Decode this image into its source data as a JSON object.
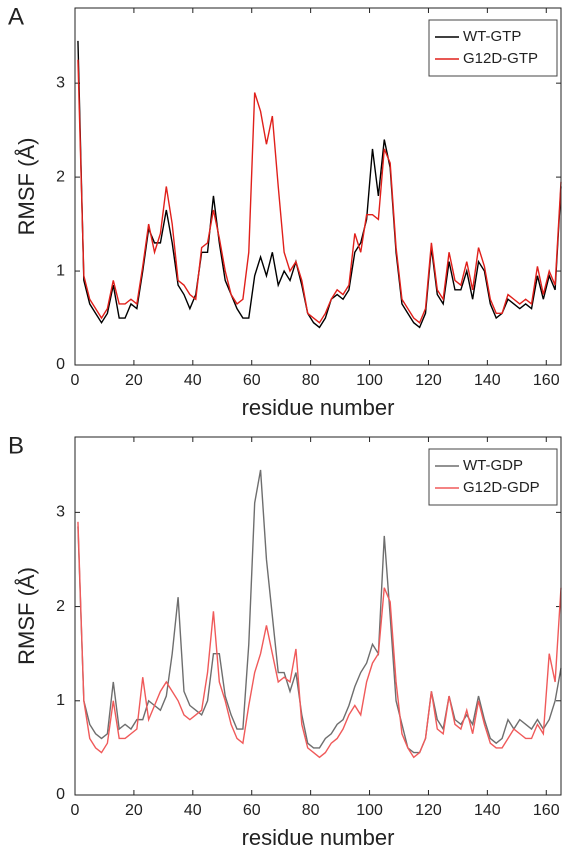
{
  "chart_data": [
    {
      "type": "line",
      "panel_label": "A",
      "xlabel": "residue number",
      "ylabel": "RMSF (Å)",
      "xlim": [
        0,
        165
      ],
      "ylim": [
        0,
        3.8
      ],
      "xticks": [
        0,
        20,
        40,
        60,
        80,
        100,
        120,
        140,
        160
      ],
      "yticks": [
        0,
        1,
        2,
        3
      ],
      "legend": "upper right",
      "x": [
        1,
        3,
        5,
        7,
        9,
        11,
        13,
        15,
        17,
        19,
        21,
        23,
        25,
        27,
        29,
        31,
        33,
        35,
        37,
        39,
        41,
        43,
        45,
        47,
        49,
        51,
        53,
        55,
        57,
        59,
        61,
        63,
        65,
        67,
        69,
        71,
        73,
        75,
        77,
        79,
        81,
        83,
        85,
        87,
        89,
        91,
        93,
        95,
        97,
        99,
        101,
        103,
        105,
        107,
        109,
        111,
        113,
        115,
        117,
        119,
        121,
        123,
        125,
        127,
        129,
        131,
        133,
        135,
        137,
        139,
        141,
        143,
        145,
        147,
        149,
        151,
        153,
        155,
        157,
        159,
        161,
        163,
        165
      ],
      "series": [
        {
          "name": "WT-GTP",
          "color": "#000000",
          "values": [
            3.45,
            0.9,
            0.65,
            0.55,
            0.45,
            0.55,
            0.85,
            0.5,
            0.5,
            0.65,
            0.6,
            1.0,
            1.45,
            1.3,
            1.3,
            1.65,
            1.3,
            0.85,
            0.75,
            0.6,
            0.75,
            1.2,
            1.2,
            1.8,
            1.3,
            0.9,
            0.75,
            0.6,
            0.5,
            0.5,
            0.95,
            1.15,
            0.95,
            1.2,
            0.85,
            1.0,
            0.9,
            1.1,
            0.85,
            0.55,
            0.45,
            0.4,
            0.5,
            0.7,
            0.75,
            0.7,
            0.8,
            1.2,
            1.3,
            1.55,
            2.3,
            1.8,
            2.4,
            2.1,
            1.2,
            0.65,
            0.55,
            0.45,
            0.4,
            0.55,
            1.25,
            0.75,
            0.65,
            1.1,
            0.8,
            0.8,
            1.0,
            0.7,
            1.1,
            1.0,
            0.65,
            0.5,
            0.55,
            0.7,
            0.65,
            0.6,
            0.65,
            0.6,
            0.95,
            0.7,
            0.95,
            0.8,
            1.9
          ]
        },
        {
          "name": "G12D-GTP",
          "color": "#e0201b",
          "values": [
            3.25,
            0.95,
            0.7,
            0.6,
            0.5,
            0.6,
            0.9,
            0.65,
            0.65,
            0.7,
            0.65,
            1.05,
            1.5,
            1.2,
            1.4,
            1.9,
            1.5,
            0.9,
            0.85,
            0.75,
            0.7,
            1.25,
            1.3,
            1.65,
            1.35,
            1.0,
            0.75,
            0.65,
            0.7,
            1.2,
            2.9,
            2.7,
            2.35,
            2.65,
            1.9,
            1.2,
            1.0,
            1.1,
            0.9,
            0.55,
            0.5,
            0.45,
            0.55,
            0.7,
            0.8,
            0.75,
            0.85,
            1.4,
            1.2,
            1.6,
            1.6,
            1.55,
            2.3,
            2.15,
            1.25,
            0.7,
            0.6,
            0.5,
            0.45,
            0.6,
            1.3,
            0.8,
            0.7,
            1.2,
            0.9,
            0.85,
            1.1,
            0.8,
            1.25,
            1.05,
            0.7,
            0.55,
            0.55,
            0.75,
            0.7,
            0.65,
            0.7,
            0.65,
            1.05,
            0.75,
            1.0,
            0.85,
            1.95
          ]
        }
      ]
    },
    {
      "type": "line",
      "panel_label": "B",
      "xlabel": "residue number",
      "ylabel": "RMSF (Å)",
      "xlim": [
        0,
        165
      ],
      "ylim": [
        0,
        3.8
      ],
      "xticks": [
        0,
        20,
        40,
        60,
        80,
        100,
        120,
        140,
        160
      ],
      "yticks": [
        0,
        1,
        2,
        3
      ],
      "legend": "upper right",
      "x": [
        1,
        3,
        5,
        7,
        9,
        11,
        13,
        15,
        17,
        19,
        21,
        23,
        25,
        27,
        29,
        31,
        33,
        35,
        37,
        39,
        41,
        43,
        45,
        47,
        49,
        51,
        53,
        55,
        57,
        59,
        61,
        63,
        65,
        67,
        69,
        71,
        73,
        75,
        77,
        79,
        81,
        83,
        85,
        87,
        89,
        91,
        93,
        95,
        97,
        99,
        101,
        103,
        105,
        107,
        109,
        111,
        113,
        115,
        117,
        119,
        121,
        123,
        125,
        127,
        129,
        131,
        133,
        135,
        137,
        139,
        141,
        143,
        145,
        147,
        149,
        151,
        153,
        155,
        157,
        159,
        161,
        163,
        165
      ],
      "series": [
        {
          "name": "WT-GDP",
          "color": "#6e6e6e",
          "values": [
            2.85,
            1.0,
            0.75,
            0.65,
            0.6,
            0.65,
            1.2,
            0.7,
            0.75,
            0.7,
            0.8,
            0.8,
            1.0,
            0.95,
            0.9,
            1.05,
            1.5,
            2.1,
            1.1,
            0.95,
            0.9,
            0.85,
            1.0,
            1.5,
            1.5,
            1.05,
            0.85,
            0.7,
            0.7,
            1.6,
            3.1,
            3.45,
            2.5,
            1.9,
            1.3,
            1.3,
            1.1,
            1.3,
            0.85,
            0.55,
            0.5,
            0.5,
            0.6,
            0.65,
            0.75,
            0.8,
            0.95,
            1.15,
            1.3,
            1.4,
            1.6,
            1.5,
            2.75,
            1.9,
            1.0,
            0.75,
            0.5,
            0.45,
            0.45,
            0.6,
            1.1,
            0.8,
            0.7,
            1.05,
            0.8,
            0.75,
            0.85,
            0.75,
            1.05,
            0.8,
            0.6,
            0.55,
            0.6,
            0.8,
            0.7,
            0.8,
            0.75,
            0.7,
            0.8,
            0.7,
            0.8,
            1.0,
            1.35
          ]
        },
        {
          "name": "G12D-GDP",
          "color": "#f05a5a",
          "values": [
            2.9,
            1.0,
            0.6,
            0.5,
            0.45,
            0.55,
            1.0,
            0.6,
            0.6,
            0.65,
            0.7,
            1.25,
            0.8,
            0.95,
            1.1,
            1.2,
            1.1,
            1.0,
            0.85,
            0.8,
            0.85,
            0.9,
            1.3,
            1.95,
            1.2,
            1.0,
            0.75,
            0.6,
            0.55,
            0.95,
            1.3,
            1.5,
            1.8,
            1.5,
            1.2,
            1.25,
            1.2,
            1.55,
            0.75,
            0.5,
            0.45,
            0.4,
            0.45,
            0.55,
            0.6,
            0.7,
            0.85,
            0.95,
            0.85,
            1.2,
            1.4,
            1.5,
            2.2,
            2.05,
            1.2,
            0.65,
            0.5,
            0.4,
            0.45,
            0.6,
            1.1,
            0.7,
            0.65,
            1.05,
            0.75,
            0.7,
            0.9,
            0.65,
            1.0,
            0.75,
            0.55,
            0.5,
            0.5,
            0.6,
            0.7,
            0.65,
            0.6,
            0.6,
            0.75,
            0.65,
            1.5,
            1.2,
            2.2
          ]
        }
      ]
    }
  ]
}
